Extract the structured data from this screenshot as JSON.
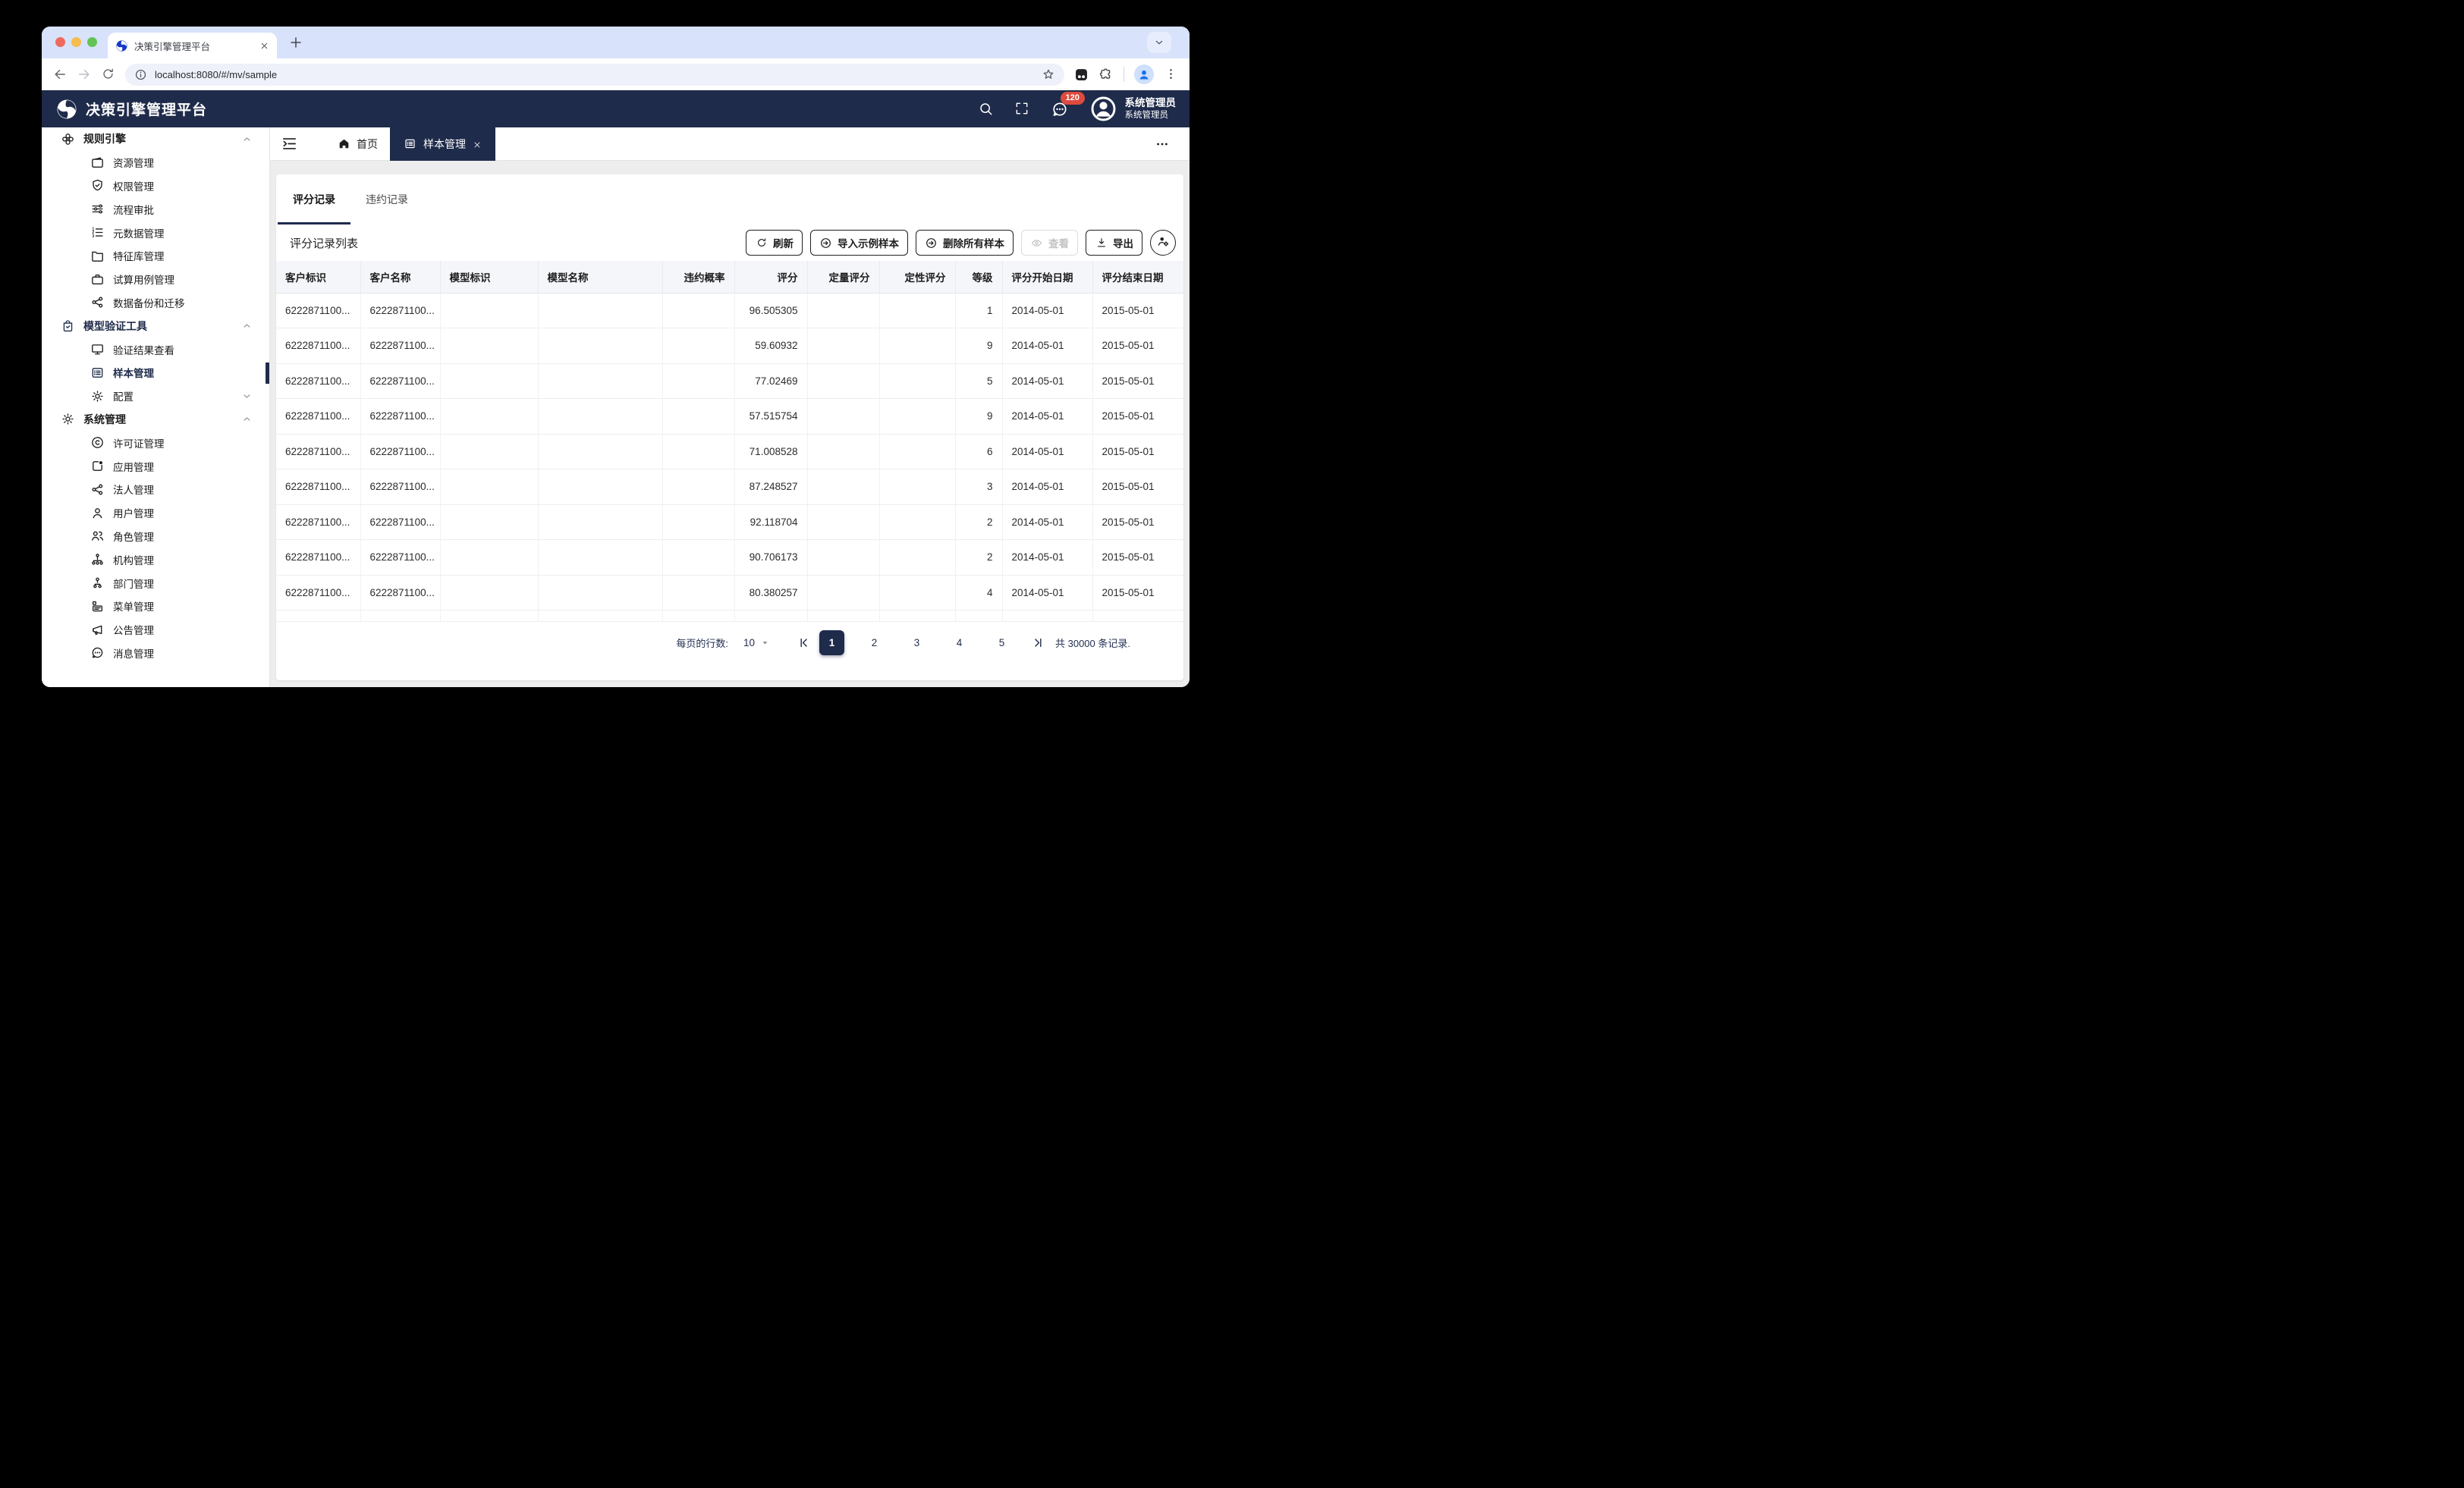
{
  "browser": {
    "tab_title": "决策引擎管理平台",
    "url": "localhost:8080/#/mv/sample"
  },
  "header": {
    "app_title": "决策引擎管理平台",
    "badge_count": "120",
    "user_name": "系统管理员",
    "user_role": "系统管理员"
  },
  "sidebar": {
    "items": [
      {
        "label": "规则引擎",
        "type": "group",
        "icon": "cluster-icon",
        "chevron": "up"
      },
      {
        "label": "资源管理",
        "type": "child",
        "icon": "wallet-icon"
      },
      {
        "label": "权限管理",
        "type": "child",
        "icon": "shield-check-icon"
      },
      {
        "label": "流程审批",
        "type": "child",
        "icon": "sliders-icon"
      },
      {
        "label": "元数据管理",
        "type": "child",
        "icon": "ordered-list-icon"
      },
      {
        "label": "特征库管理",
        "type": "child",
        "icon": "folder-icon"
      },
      {
        "label": "试算用例管理",
        "type": "child",
        "icon": "briefcase-icon"
      },
      {
        "label": "数据备份和迁移",
        "type": "child",
        "icon": "share-icon"
      },
      {
        "label": "模型验证工具",
        "type": "group",
        "icon": "bag-check-icon",
        "chevron": "up",
        "emphasis": true
      },
      {
        "label": "验证结果查看",
        "type": "child",
        "icon": "monitor-icon"
      },
      {
        "label": "样本管理",
        "type": "child",
        "icon": "list-square-icon",
        "active": true
      },
      {
        "label": "配置",
        "type": "child",
        "icon": "gear-icon",
        "chevron": "down"
      },
      {
        "label": "系统管理",
        "type": "group",
        "icon": "gear-icon",
        "chevron": "up"
      },
      {
        "label": "许可证管理",
        "type": "child",
        "icon": "copyright-icon"
      },
      {
        "label": "应用管理",
        "type": "child",
        "icon": "app-icon"
      },
      {
        "label": "法人管理",
        "type": "child",
        "icon": "share-icon"
      },
      {
        "label": "用户管理",
        "type": "child",
        "icon": "user-icon"
      },
      {
        "label": "角色管理",
        "type": "child",
        "icon": "users-icon"
      },
      {
        "label": "机构管理",
        "type": "child",
        "icon": "org-chart-icon"
      },
      {
        "label": "部门管理",
        "type": "child",
        "icon": "dept-chart-icon"
      },
      {
        "label": "菜单管理",
        "type": "child",
        "icon": "menu-card-icon"
      },
      {
        "label": "公告管理",
        "type": "child",
        "icon": "megaphone-icon"
      },
      {
        "label": "消息管理",
        "type": "child",
        "icon": "chat-dots-icon"
      }
    ]
  },
  "topbar": {
    "home_label": "首页",
    "active_tab": "样本管理"
  },
  "content": {
    "tabs": [
      {
        "label": "评分记录",
        "active": true
      },
      {
        "label": "违约记录",
        "active": false
      }
    ],
    "list_title": "评分记录列表",
    "buttons": {
      "refresh": "刷新",
      "import_samples": "导入示例样本",
      "delete_all": "删除所有样本",
      "view": "查看",
      "export": "导出"
    }
  },
  "table": {
    "columns": [
      {
        "label": "客户标识",
        "align": "left"
      },
      {
        "label": "客户名称",
        "align": "left"
      },
      {
        "label": "模型标识",
        "align": "left"
      },
      {
        "label": "模型名称",
        "align": "left"
      },
      {
        "label": "违约概率",
        "align": "right"
      },
      {
        "label": "评分",
        "align": "right"
      },
      {
        "label": "定量评分",
        "align": "right"
      },
      {
        "label": "定性评分",
        "align": "right"
      },
      {
        "label": "等级",
        "align": "right"
      },
      {
        "label": "评分开始日期",
        "align": "left"
      },
      {
        "label": "评分结束日期",
        "align": "left"
      }
    ],
    "rows": [
      {
        "customer_id": "6222871100...",
        "customer_name": "6222871100...",
        "model_id": "",
        "model_name": "",
        "default_prob": "",
        "score": "96.505305",
        "quant_score": "",
        "qual_score": "",
        "grade": "1",
        "start_date": "2014-05-01",
        "end_date": "2015-05-01"
      },
      {
        "customer_id": "6222871100...",
        "customer_name": "6222871100...",
        "model_id": "",
        "model_name": "",
        "default_prob": "",
        "score": "59.60932",
        "quant_score": "",
        "qual_score": "",
        "grade": "9",
        "start_date": "2014-05-01",
        "end_date": "2015-05-01"
      },
      {
        "customer_id": "6222871100...",
        "customer_name": "6222871100...",
        "model_id": "",
        "model_name": "",
        "default_prob": "",
        "score": "77.02469",
        "quant_score": "",
        "qual_score": "",
        "grade": "5",
        "start_date": "2014-05-01",
        "end_date": "2015-05-01"
      },
      {
        "customer_id": "6222871100...",
        "customer_name": "6222871100...",
        "model_id": "",
        "model_name": "",
        "default_prob": "",
        "score": "57.515754",
        "quant_score": "",
        "qual_score": "",
        "grade": "9",
        "start_date": "2014-05-01",
        "end_date": "2015-05-01"
      },
      {
        "customer_id": "6222871100...",
        "customer_name": "6222871100...",
        "model_id": "",
        "model_name": "",
        "default_prob": "",
        "score": "71.008528",
        "quant_score": "",
        "qual_score": "",
        "grade": "6",
        "start_date": "2014-05-01",
        "end_date": "2015-05-01"
      },
      {
        "customer_id": "6222871100...",
        "customer_name": "6222871100...",
        "model_id": "",
        "model_name": "",
        "default_prob": "",
        "score": "87.248527",
        "quant_score": "",
        "qual_score": "",
        "grade": "3",
        "start_date": "2014-05-01",
        "end_date": "2015-05-01"
      },
      {
        "customer_id": "6222871100...",
        "customer_name": "6222871100...",
        "model_id": "",
        "model_name": "",
        "default_prob": "",
        "score": "92.118704",
        "quant_score": "",
        "qual_score": "",
        "grade": "2",
        "start_date": "2014-05-01",
        "end_date": "2015-05-01"
      },
      {
        "customer_id": "6222871100...",
        "customer_name": "6222871100...",
        "model_id": "",
        "model_name": "",
        "default_prob": "",
        "score": "90.706173",
        "quant_score": "",
        "qual_score": "",
        "grade": "2",
        "start_date": "2014-05-01",
        "end_date": "2015-05-01"
      },
      {
        "customer_id": "6222871100...",
        "customer_name": "6222871100...",
        "model_id": "",
        "model_name": "",
        "default_prob": "",
        "score": "80.380257",
        "quant_score": "",
        "qual_score": "",
        "grade": "4",
        "start_date": "2014-05-01",
        "end_date": "2015-05-01"
      }
    ]
  },
  "pagination": {
    "rows_label": "每页的行数:",
    "rows_value": "10",
    "pages": [
      "1",
      "2",
      "3",
      "4",
      "5"
    ],
    "active_page": "1",
    "total_label": "共 30000 条记录."
  },
  "colors": {
    "navy": "#1f2b4a",
    "badge_red": "#df4a3e",
    "tabstrip": "#d8e2fb",
    "content_bg": "#ededed",
    "table_header_bg": "#f5f6fa"
  }
}
